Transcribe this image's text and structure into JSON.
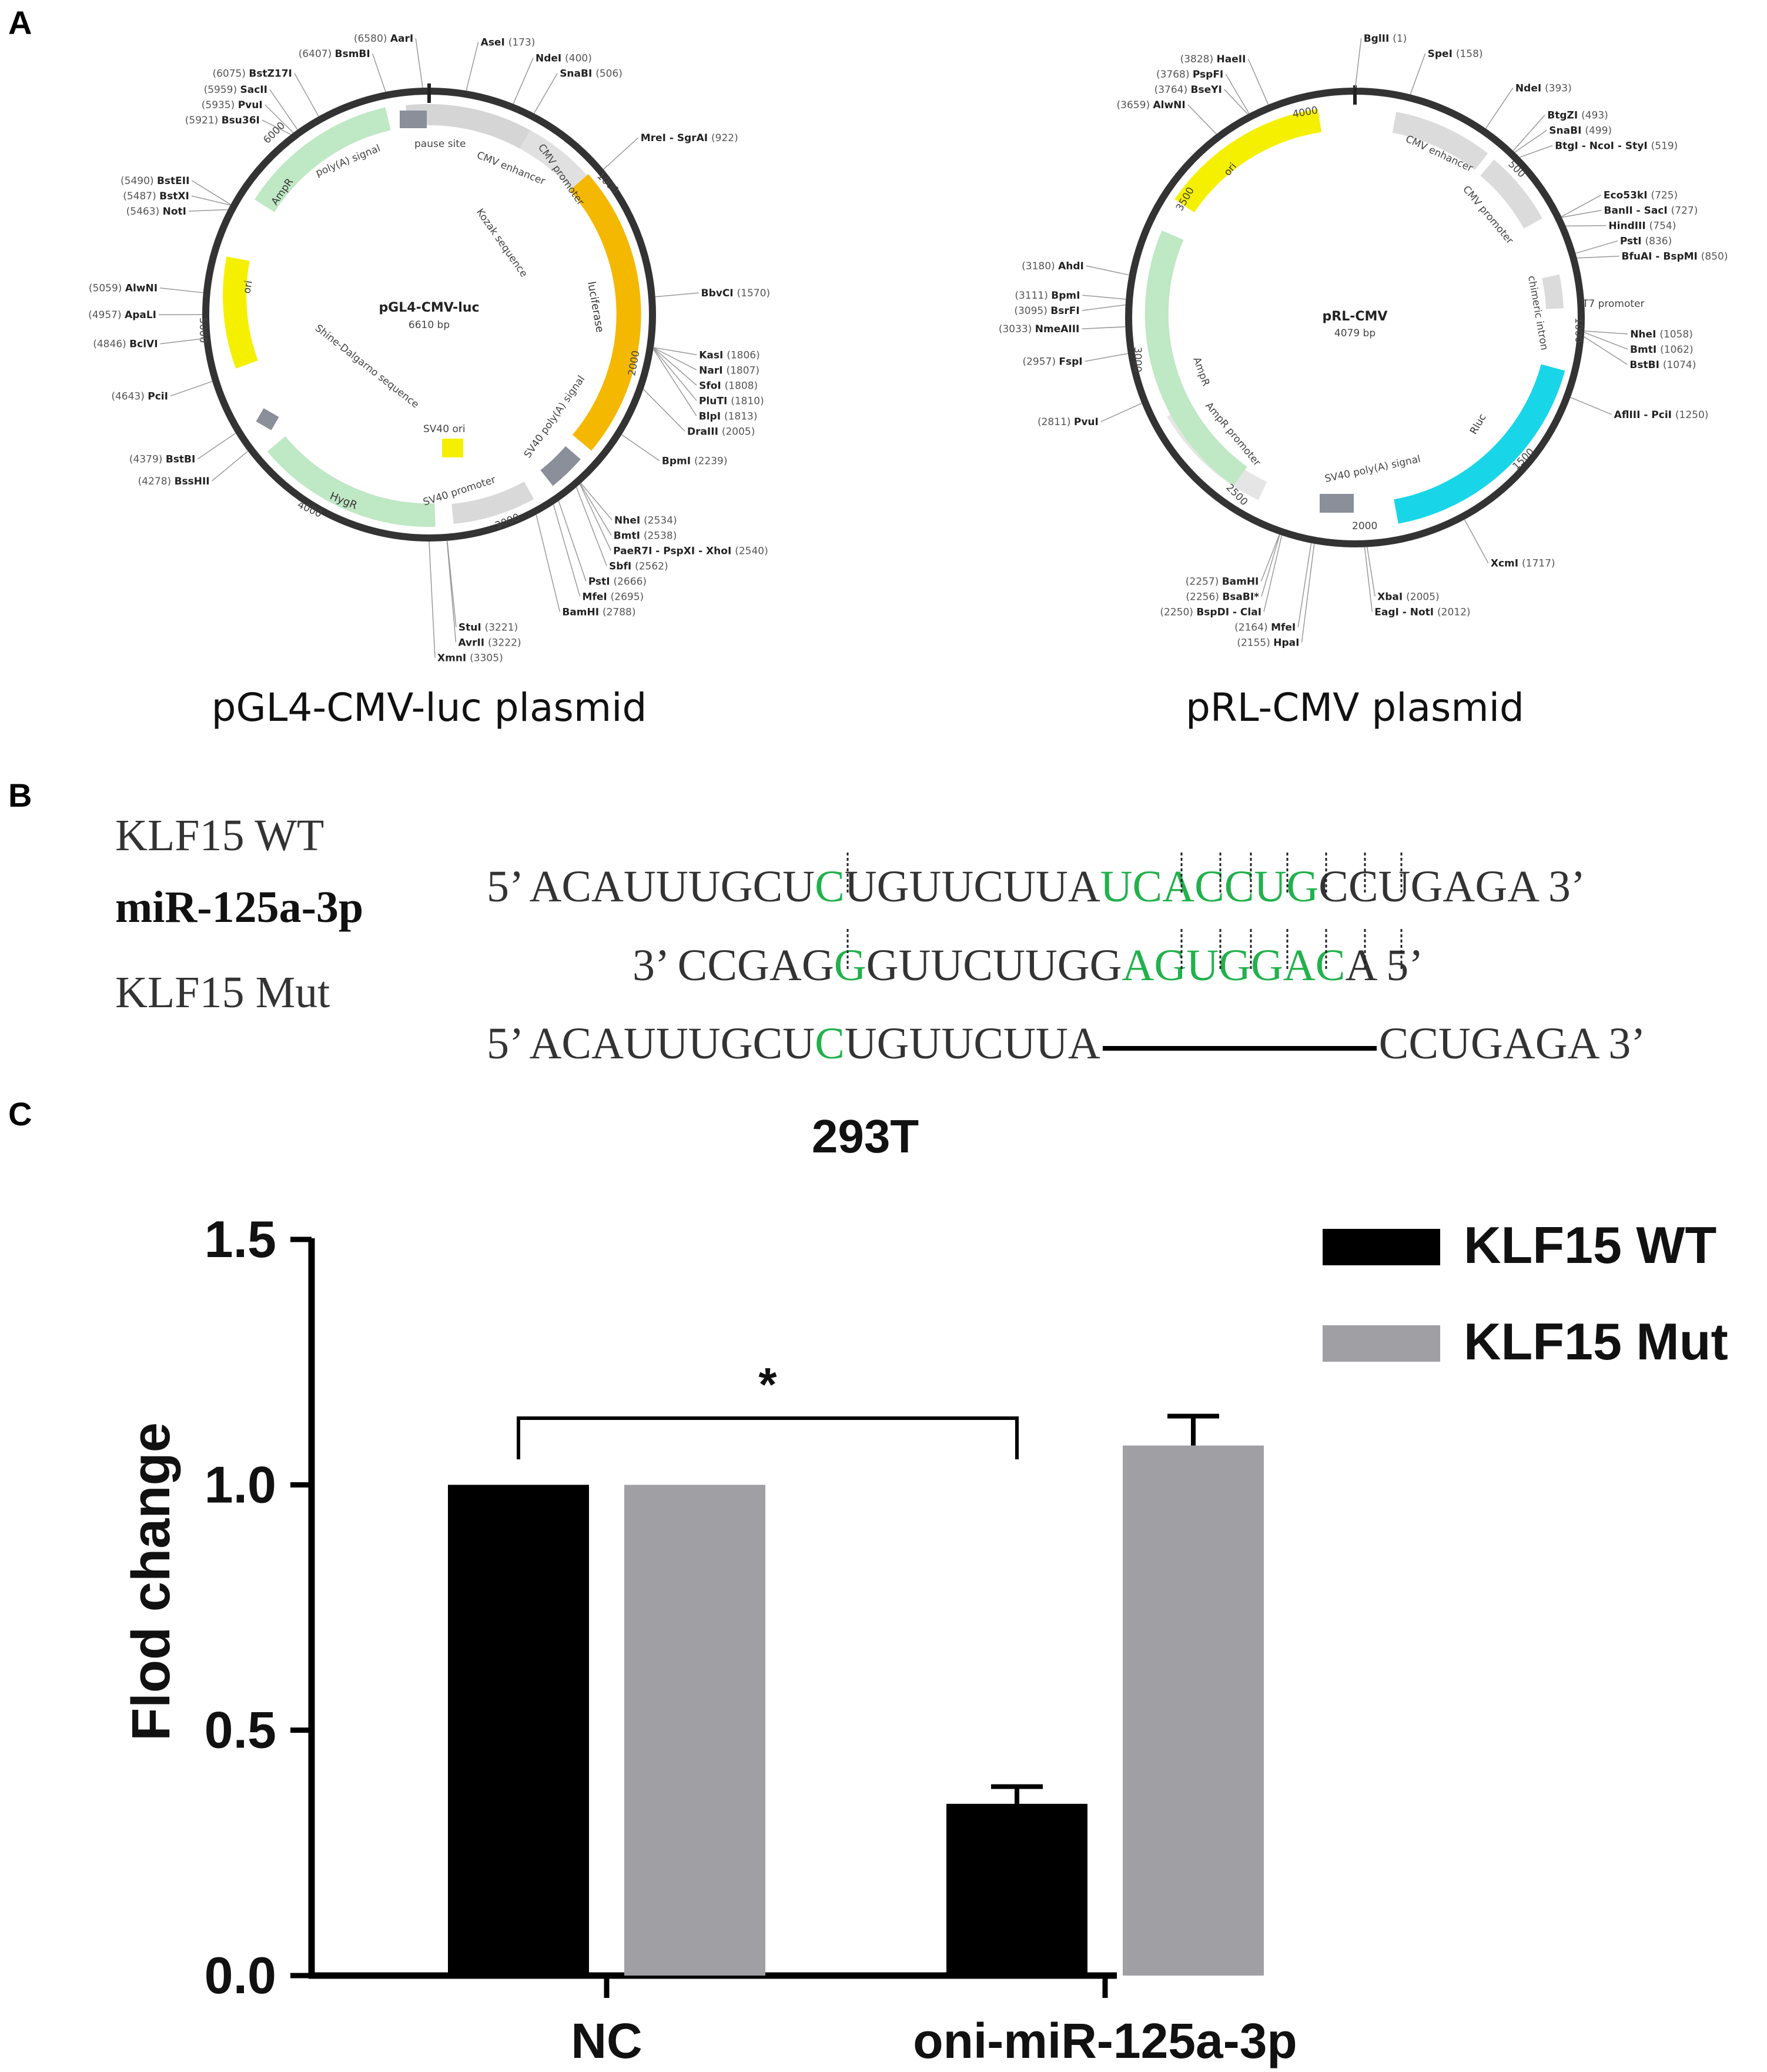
{
  "panels": {
    "a": "A",
    "b": "B",
    "c": "C"
  },
  "plasmid1": {
    "name": "pGL4-CMV-luc",
    "size": "6610 bp",
    "caption": "pGL4-CMV-luc plasmid",
    "total_bp": 6610,
    "ticks": [
      "1000",
      "2000",
      "3000",
      "4000",
      "5000",
      "6000"
    ],
    "features": [
      {
        "label": "CMV enhancer"
      },
      {
        "label": "CMV promoter"
      },
      {
        "label": "luciferase"
      },
      {
        "label": "SV40 poly(A) signal"
      },
      {
        "label": "SV40 promoter"
      },
      {
        "label": "HygR"
      },
      {
        "label": "SV40 ori"
      },
      {
        "label": "poly(A) signal"
      },
      {
        "label": "ori"
      },
      {
        "label": "AmpR"
      },
      {
        "label": "pause site"
      },
      {
        "label": "Kozak sequence"
      },
      {
        "label": "Shine-Dalgarno sequence"
      }
    ],
    "sites": [
      {
        "name": "AarI",
        "pos": "(6580)"
      },
      {
        "name": "BsmBI",
        "pos": "(6407)"
      },
      {
        "name": "BstZ17I",
        "pos": "(6075)"
      },
      {
        "name": "SacII",
        "pos": "(5959)"
      },
      {
        "name": "PvuI",
        "pos": "(5935)"
      },
      {
        "name": "Bsu36I",
        "pos": "(5921)"
      },
      {
        "name": "BstEII",
        "pos": "(5490)"
      },
      {
        "name": "BstXI",
        "pos": "(5487)"
      },
      {
        "name": "NotI",
        "pos": "(5463)"
      },
      {
        "name": "AlwNI",
        "pos": "(5059)"
      },
      {
        "name": "ApaLI",
        "pos": "(4957)"
      },
      {
        "name": "BclVI",
        "pos": "(4846)"
      },
      {
        "name": "PciI",
        "pos": "(4643)"
      },
      {
        "name": "BstBI",
        "pos": "(4379)"
      },
      {
        "name": "BssHII",
        "pos": "(4278)"
      },
      {
        "name": "XmnI",
        "pos": "(3305)"
      },
      {
        "name": "AseI",
        "pos": "(173)"
      },
      {
        "name": "NdeI",
        "pos": "(400)"
      },
      {
        "name": "SnaBI",
        "pos": "(506)"
      },
      {
        "name": "MreI - SgrAI",
        "pos": "(922)"
      },
      {
        "name": "BbvCI",
        "pos": "(1570)"
      },
      {
        "name": "KasI",
        "pos": "(1806)"
      },
      {
        "name": "NarI",
        "pos": "(1807)"
      },
      {
        "name": "SfoI",
        "pos": "(1808)"
      },
      {
        "name": "PluTI",
        "pos": "(1810)"
      },
      {
        "name": "BlpI",
        "pos": "(1813)"
      },
      {
        "name": "DraIII",
        "pos": "(2005)"
      },
      {
        "name": "BpmI",
        "pos": "(2239)"
      },
      {
        "name": "NheI",
        "pos": "(2534)"
      },
      {
        "name": "BmtI",
        "pos": "(2538)"
      },
      {
        "name": "PaeR7I - PspXI - XhoI",
        "pos": "(2540)"
      },
      {
        "name": "SbfI",
        "pos": "(2562)"
      },
      {
        "name": "PstI",
        "pos": "(2666)"
      },
      {
        "name": "MfeI",
        "pos": "(2695)"
      },
      {
        "name": "BamHI",
        "pos": "(2788)"
      },
      {
        "name": "StuI",
        "pos": "(3221)"
      },
      {
        "name": "AvrII",
        "pos": "(3222)"
      }
    ]
  },
  "plasmid2": {
    "name": "pRL-CMV",
    "size": "4079 bp",
    "caption": "pRL-CMV plasmid",
    "total_bp": 4079,
    "ticks": [
      "500",
      "1000",
      "1500",
      "2000",
      "2500",
      "3000",
      "3500",
      "4000"
    ],
    "features": [
      {
        "label": "CMV enhancer"
      },
      {
        "label": "CMV promoter"
      },
      {
        "label": "chimeric intron"
      },
      {
        "label": "T7 promoter"
      },
      {
        "label": "Rluc"
      },
      {
        "label": "SV40 poly(A) signal"
      },
      {
        "label": "AmpR promoter"
      },
      {
        "label": "AmpR"
      },
      {
        "label": "ori"
      }
    ],
    "sites": [
      {
        "name": "BglII",
        "pos": "(1)"
      },
      {
        "name": "SpeI",
        "pos": "(158)"
      },
      {
        "name": "NdeI",
        "pos": "(393)"
      },
      {
        "name": "BtgZI",
        "pos": "(493)"
      },
      {
        "name": "SnaBI",
        "pos": "(499)"
      },
      {
        "name": "BtgI - NcoI - StyI",
        "pos": "(519)"
      },
      {
        "name": "Eco53kI",
        "pos": "(725)"
      },
      {
        "name": "BanII - SacI",
        "pos": "(727)"
      },
      {
        "name": "HindIII",
        "pos": "(754)"
      },
      {
        "name": "PstI",
        "pos": "(836)"
      },
      {
        "name": "BfuAI - BspMI",
        "pos": "(850)"
      },
      {
        "name": "NheI",
        "pos": "(1058)"
      },
      {
        "name": "BmtI",
        "pos": "(1062)"
      },
      {
        "name": "BstBI",
        "pos": "(1074)"
      },
      {
        "name": "AflIII - PciI",
        "pos": "(1250)"
      },
      {
        "name": "XcmI",
        "pos": "(1717)"
      },
      {
        "name": "XbaI",
        "pos": "(2005)"
      },
      {
        "name": "EagI - NotI",
        "pos": "(2012)"
      },
      {
        "name": "HpaI",
        "pos": "(2155)"
      },
      {
        "name": "MfeI",
        "pos": "(2164)"
      },
      {
        "name": "BspDI - ClaI",
        "pos": "(2250)"
      },
      {
        "name": "BsaBI*",
        "pos": "(2256)"
      },
      {
        "name": "BamHI",
        "pos": "(2257)"
      },
      {
        "name": "PvuI",
        "pos": "(2811)"
      },
      {
        "name": "FspI",
        "pos": "(2957)"
      },
      {
        "name": "NmeAIII",
        "pos": "(3033)"
      },
      {
        "name": "BsrFI",
        "pos": "(3095)"
      },
      {
        "name": "BpmI",
        "pos": "(3111)"
      },
      {
        "name": "AhdI",
        "pos": "(3180)"
      },
      {
        "name": "AlwNI",
        "pos": "(3659)"
      },
      {
        "name": "BseYI",
        "pos": "(3764)"
      },
      {
        "name": "PspFI",
        "pos": "(3768)"
      },
      {
        "name": "HaeII",
        "pos": "(3828)"
      }
    ]
  },
  "sequences": {
    "wt_label": "KLF15 WT",
    "mir_label": "miR-125a-3p",
    "mut_label": "KLF15 Mut",
    "wt": {
      "p1": "5’ ACAUUUGCU",
      "h1": "C",
      "p2": "UGUUCUUA",
      "h2": "UCACCUG",
      "p3": "CCUGAGA 3’"
    },
    "mir": {
      "p1": "3’ CCGAG",
      "h1": "G",
      "p2": "GUUCUUGG",
      "h2": "AGUGGAC",
      "p3": "A 5’"
    },
    "mut": {
      "p1": "5’ ACAUUUGCU",
      "h1": "C",
      "p2": "UGUUCUUA",
      "p3": "CCUGAGA 3’"
    },
    "highlight_color": "#22b14c"
  },
  "chart_data": {
    "type": "bar",
    "title": "293T",
    "ylabel": "Flod change",
    "xlabel": "",
    "categories": [
      "NC",
      "oni-miR-125a-3p"
    ],
    "series": [
      {
        "name": "KLF15 WT",
        "values": [
          1.0,
          0.35
        ],
        "errors": [
          0,
          0.035
        ],
        "color": "#000000"
      },
      {
        "name": "KLF15 Mut",
        "values": [
          1.0,
          1.08
        ],
        "errors": [
          0,
          0.06
        ],
        "color": "#a0a0a4"
      }
    ],
    "ylim": [
      0,
      1.5
    ],
    "yticks": [
      "0.0",
      "0.5",
      "1.0",
      "1.5"
    ],
    "significance": {
      "label": "*"
    },
    "legend_position": "top-right",
    "grid": false
  }
}
